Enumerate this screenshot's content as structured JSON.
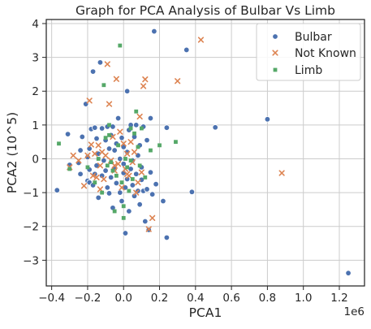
{
  "chart_data": {
    "type": "scatter",
    "title": "Graph for PCA Analysis of Bulbar Vs Limb",
    "xlabel": "PCA1",
    "ylabel": "PCA2 (10^5)",
    "x_offset_label": "1e6",
    "xlim": [
      -0.43,
      1.34
    ],
    "ylim": [
      -3.76,
      4.12
    ],
    "x_ticks": [
      -0.4,
      -0.2,
      0.0,
      0.2,
      0.4,
      0.6,
      0.8,
      1.0,
      1.2
    ],
    "x_tick_labels": [
      "−0.4",
      "−0.2",
      "0.0",
      "0.2",
      "0.4",
      "0.6",
      "0.8",
      "1.0",
      "1.2"
    ],
    "y_ticks": [
      -3,
      -2,
      -1,
      0,
      1,
      2,
      3,
      4
    ],
    "y_tick_labels": [
      "−3",
      "−2",
      "−1",
      "0",
      "1",
      "2",
      "3",
      "4"
    ],
    "grid": true,
    "legend_position": "top-right",
    "series": [
      {
        "name": "Bulbar",
        "marker": "circle",
        "color": "#4c72b0",
        "points": [
          [
            -0.37,
            -0.93
          ],
          [
            -0.31,
            0.73
          ],
          [
            -0.3,
            -0.18
          ],
          [
            -0.25,
            -0.12
          ],
          [
            -0.24,
            0.25
          ],
          [
            -0.23,
            0.65
          ],
          [
            -0.21,
            1.62
          ],
          [
            -0.2,
            0.05
          ],
          [
            -0.19,
            -0.32
          ],
          [
            -0.19,
            0.3
          ],
          [
            -0.2,
            -0.65
          ],
          [
            -0.19,
            -0.7
          ],
          [
            -0.18,
            0.88
          ],
          [
            -0.17,
            -0.78
          ],
          [
            -0.16,
            -0.45
          ],
          [
            -0.16,
            0.92
          ],
          [
            -0.15,
            0.6
          ],
          [
            -0.15,
            -0.2
          ],
          [
            -0.14,
            -1.15
          ],
          [
            -0.14,
            0.15
          ],
          [
            -0.13,
            2.85
          ],
          [
            -0.12,
            0.9
          ],
          [
            -0.12,
            -0.5
          ],
          [
            -0.11,
            -0.05
          ],
          [
            -0.1,
            -0.35
          ],
          [
            -0.1,
            0.55
          ],
          [
            -0.09,
            -0.85
          ],
          [
            -0.09,
            0.95
          ],
          [
            -0.08,
            -1.02
          ],
          [
            -0.08,
            0.3
          ],
          [
            -0.07,
            0.7
          ],
          [
            -0.07,
            -0.55
          ],
          [
            -0.06,
            0.95
          ],
          [
            -0.06,
            -1.45
          ],
          [
            -0.05,
            -0.3
          ],
          [
            -0.05,
            0.25
          ],
          [
            -0.04,
            -0.72
          ],
          [
            -0.04,
            0.45
          ],
          [
            -0.03,
            1.2
          ],
          [
            -0.02,
            -1.0
          ],
          [
            -0.02,
            0.0
          ],
          [
            -0.01,
            -1.25
          ],
          [
            -0.01,
            0.62
          ],
          [
            0.0,
            -0.42
          ],
          [
            0.0,
            -0.15
          ],
          [
            0.0,
            0.35
          ],
          [
            0.01,
            -2.2
          ],
          [
            0.01,
            -0.85
          ],
          [
            0.02,
            2.0
          ],
          [
            0.02,
            -0.6
          ],
          [
            0.02,
            0.2
          ],
          [
            0.03,
            -1.55
          ],
          [
            0.03,
            0.85
          ],
          [
            0.04,
            -0.3
          ],
          [
            0.04,
            1.0
          ],
          [
            0.05,
            -0.78
          ],
          [
            0.05,
            -0.05
          ],
          [
            0.06,
            0.65
          ],
          [
            0.06,
            -1.1
          ],
          [
            0.07,
            -0.45
          ],
          [
            0.07,
            1.0
          ],
          [
            0.08,
            0.1
          ],
          [
            0.08,
            -0.95
          ],
          [
            0.09,
            -1.35
          ],
          [
            0.09,
            0.4
          ],
          [
            0.1,
            -0.25
          ],
          [
            0.1,
            -0.62
          ],
          [
            0.11,
            0.95
          ],
          [
            0.11,
            -0.95
          ],
          [
            0.12,
            -1.85
          ],
          [
            0.13,
            -0.9
          ],
          [
            0.13,
            0.55
          ],
          [
            0.14,
            -2.1
          ],
          [
            0.15,
            1.2
          ],
          [
            0.15,
            -0.4
          ],
          [
            0.16,
            -1.05
          ],
          [
            0.17,
            3.77
          ],
          [
            0.18,
            -0.75
          ],
          [
            0.22,
            -1.25
          ],
          [
            0.24,
            0.92
          ],
          [
            0.24,
            -2.33
          ],
          [
            0.35,
            3.22
          ],
          [
            0.38,
            -0.98
          ],
          [
            0.51,
            0.93
          ],
          [
            0.8,
            1.17
          ],
          [
            1.25,
            -3.38
          ],
          [
            -0.17,
            2.58
          ],
          [
            -0.24,
            -0.45
          ]
        ]
      },
      {
        "name": "Not Known",
        "marker": "x",
        "color": "#dd8452",
        "points": [
          [
            -0.3,
            -0.25
          ],
          [
            -0.28,
            0.1
          ],
          [
            -0.25,
            -0.05
          ],
          [
            -0.22,
            -0.8
          ],
          [
            -0.2,
            0.1
          ],
          [
            -0.19,
            1.72
          ],
          [
            -0.18,
            0.42
          ],
          [
            -0.17,
            -0.5
          ],
          [
            -0.16,
            0.15
          ],
          [
            -0.15,
            -0.55
          ],
          [
            -0.14,
            0.4
          ],
          [
            -0.13,
            -0.9
          ],
          [
            -0.12,
            0.2
          ],
          [
            -0.11,
            -0.6
          ],
          [
            -0.1,
            0.1
          ],
          [
            -0.09,
            2.8
          ],
          [
            -0.08,
            1.62
          ],
          [
            -0.07,
            -0.05
          ],
          [
            -0.06,
            0.65
          ],
          [
            -0.05,
            -0.35
          ],
          [
            -0.04,
            2.36
          ],
          [
            -0.03,
            -0.15
          ],
          [
            -0.02,
            0.8
          ],
          [
            -0.01,
            -0.85
          ],
          [
            0.0,
            0.45
          ],
          [
            0.01,
            -0.3
          ],
          [
            0.02,
            0.15
          ],
          [
            0.03,
            -0.5
          ],
          [
            0.04,
            0.5
          ],
          [
            0.05,
            -0.1
          ],
          [
            0.06,
            0.2
          ],
          [
            0.07,
            -1.0
          ],
          [
            0.08,
            -0.7
          ],
          [
            0.09,
            1.25
          ],
          [
            0.1,
            -0.4
          ],
          [
            0.11,
            2.15
          ],
          [
            0.12,
            2.35
          ],
          [
            0.14,
            -2.08
          ],
          [
            0.16,
            -1.75
          ],
          [
            0.3,
            2.3
          ],
          [
            0.43,
            3.52
          ],
          [
            0.88,
            -0.42
          ],
          [
            -0.05,
            -0.2
          ],
          [
            0.02,
            -0.45
          ],
          [
            -0.13,
            -0.2
          ]
        ]
      },
      {
        "name": "Limb",
        "marker": "square",
        "color": "#55a868",
        "points": [
          [
            -0.36,
            0.45
          ],
          [
            -0.3,
            -0.3
          ],
          [
            -0.2,
            -0.25
          ],
          [
            -0.16,
            -0.7
          ],
          [
            -0.14,
            0.0
          ],
          [
            -0.12,
            -1.0
          ],
          [
            -0.11,
            2.18
          ],
          [
            -0.1,
            0.62
          ],
          [
            -0.09,
            -0.2
          ],
          [
            -0.08,
            1.0
          ],
          [
            -0.07,
            -0.1
          ],
          [
            -0.06,
            -0.35
          ],
          [
            -0.05,
            -1.55
          ],
          [
            -0.04,
            -0.5
          ],
          [
            -0.03,
            0.4
          ],
          [
            -0.02,
            3.35
          ],
          [
            -0.01,
            -0.7
          ],
          [
            0.0,
            -1.75
          ],
          [
            0.01,
            0.0
          ],
          [
            0.02,
            -0.25
          ],
          [
            0.03,
            -0.95
          ],
          [
            0.04,
            0.9
          ],
          [
            0.05,
            -0.6
          ],
          [
            0.06,
            0.75
          ],
          [
            0.07,
            1.4
          ],
          [
            0.08,
            0.35
          ],
          [
            0.09,
            -0.2
          ],
          [
            0.1,
            0.9
          ],
          [
            0.12,
            -0.55
          ],
          [
            0.15,
            0.25
          ],
          [
            0.2,
            0.4
          ],
          [
            0.29,
            0.5
          ],
          [
            -0.08,
            0.7
          ],
          [
            0.0,
            -1.4
          ],
          [
            0.04,
            -0.05
          ]
        ]
      }
    ]
  }
}
